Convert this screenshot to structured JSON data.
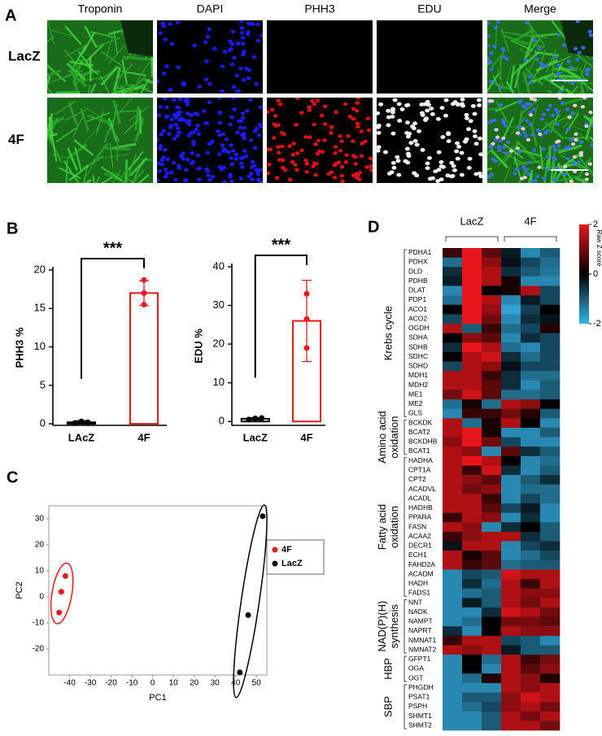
{
  "panel_labels": [
    "A",
    "B",
    "C",
    "D"
  ],
  "panel_a": {
    "columns": [
      "Troponin",
      "DAPI",
      "PHH3",
      "EDU",
      "Merge"
    ],
    "rows": [
      "LacZ",
      "4F"
    ]
  },
  "chart_data": [
    {
      "type": "bar",
      "ylabel": "PHH3 %",
      "categories": [
        "LAcZ",
        "4F"
      ],
      "values": [
        0.2,
        17
      ],
      "errors": [
        0.2,
        1.6
      ],
      "points": [
        [
          0.1,
          0.3,
          0.2
        ],
        [
          18.7,
          17,
          15.5
        ]
      ],
      "colors": [
        "#000000",
        "#e41a1c"
      ],
      "ylim": [
        -0.2,
        20
      ],
      "yticks": [
        0,
        5,
        10,
        15,
        20
      ],
      "annotation": "***"
    },
    {
      "type": "bar",
      "ylabel": "EDU %",
      "categories": [
        "LacZ",
        "4F"
      ],
      "values": [
        0.7,
        26
      ],
      "errors": [
        0.3,
        10.5
      ],
      "points": [
        [
          0.5,
          0.8,
          0.9
        ],
        [
          33,
          26.5,
          19
        ]
      ],
      "colors": [
        "#000000",
        "#e41a1c"
      ],
      "ylim": [
        -1,
        40
      ],
      "yticks": [
        0,
        10,
        20,
        30,
        40
      ],
      "annotation": "***"
    },
    {
      "type": "scatter",
      "xlabel": "PC1",
      "ylabel": "PC2",
      "series": [
        {
          "name": "4F",
          "color": "#e41a1c",
          "x": [
            -42,
            -44,
            -45
          ],
          "values": [
            8,
            2,
            -6
          ]
        },
        {
          "name": "LacZ",
          "color": "#000000",
          "x": [
            53,
            46,
            42
          ],
          "values": [
            31,
            -7,
            -29
          ]
        }
      ],
      "xlim": [
        -50,
        55
      ],
      "xticks": [
        -40,
        -30,
        -20,
        -10,
        0,
        10,
        20,
        30,
        40,
        50
      ],
      "ylim": [
        -30,
        35
      ],
      "yticks": [
        -20,
        -10,
        0,
        10,
        20,
        30
      ]
    },
    {
      "type": "heatmap",
      "column_groups": [
        "LacZ",
        "4F"
      ],
      "colorbar_label": "Raw Z score",
      "clim": [
        -2,
        2
      ],
      "cticks": [
        -2,
        0,
        2
      ],
      "groups": [
        {
          "label": [
            "Krebs cycle"
          ],
          "genes": [
            "PDHA1",
            "PDHX",
            "DLD",
            "PDHB",
            "DLAT",
            "PDP1",
            "ACO1",
            "ACO2",
            "OGDH",
            "SDHA",
            "SDHB",
            "SDHC",
            "SDHD",
            "MDH1",
            "MDH2",
            "ME1",
            "ME2",
            "GLS"
          ],
          "values": [
            [
              0.5,
              2,
              0.8,
              -0.3,
              -1.5,
              -1
            ],
            [
              -1.2,
              2,
              1.2,
              -0.2,
              -0.8,
              -1.2
            ],
            [
              -0.5,
              2,
              1.5,
              -0.5,
              -1,
              -1.3
            ],
            [
              -0.3,
              2,
              1.5,
              0.2,
              -1.5,
              -1.5
            ],
            [
              -1.5,
              2,
              0,
              0.2,
              1.5,
              -0.8
            ],
            [
              -1.2,
              2,
              1.5,
              -1.5,
              -0.3,
              -0.8
            ],
            [
              0,
              2,
              1.3,
              -1.8,
              -0.7,
              0
            ],
            [
              -0.8,
              2,
              1,
              -1.5,
              -0.5,
              -0.2
            ],
            [
              1.5,
              -1,
              0.5,
              -1.2,
              -0.8,
              0.3
            ],
            [
              0,
              1.2,
              0.8,
              -1.5,
              -0.5,
              -0.8
            ],
            [
              -0.5,
              2,
              1.5,
              -1.2,
              -1.5,
              -0.8
            ],
            [
              0,
              1.5,
              1.8,
              -0.5,
              -1.2,
              -0.8
            ],
            [
              -0.8,
              1.5,
              1.2,
              -0.2,
              -0.8,
              -0.8
            ],
            [
              1.5,
              1.5,
              0.5,
              -0.5,
              -1.2,
              -1.2
            ],
            [
              1.5,
              1.5,
              0.8,
              -0.5,
              -1.5,
              -1
            ],
            [
              1,
              1.8,
              0.8,
              -1.2,
              -1.2,
              -1
            ],
            [
              -1.2,
              0.2,
              -1.2,
              1.5,
              1.2,
              0
            ],
            [
              -1.5,
              0.5,
              0.5,
              1,
              0.3,
              -1
            ]
          ]
        },
        {
          "label": [
            "Amino acid",
            "oxidation"
          ],
          "genes": [
            "BCKDK",
            "BCAT2",
            "BCKDHB",
            "BCAT1"
          ],
          "values": [
            [
              1.5,
              -1.2,
              0.2,
              1.5,
              0,
              -1.5
            ],
            [
              1.5,
              2,
              0.2,
              -1.5,
              -1.5,
              -1
            ],
            [
              1.2,
              2,
              1,
              -0.8,
              -1.5,
              -1.5
            ],
            [
              1.5,
              1.2,
              -1.5,
              0.8,
              -0.5,
              -1
            ]
          ]
        },
        {
          "label": [
            "Fatty acid",
            "oxidation"
          ],
          "genes": [
            "HADHA",
            "CPT1A",
            "CPT2",
            "ACADVL",
            "ACADL",
            "HADHB",
            "PPARA",
            "FASN",
            "ACAA2",
            "DECR1",
            "ECH1",
            "FAHD2A",
            "ACADM",
            "HADH",
            "FADS1"
          ],
          "values": [
            [
              1.5,
              2,
              1.5,
              0,
              -1.5,
              -1.2
            ],
            [
              1.5,
              0.5,
              1.8,
              -0.5,
              -1.5,
              -1
            ],
            [
              1.5,
              1.2,
              0.8,
              -1.5,
              -1,
              -0.5
            ],
            [
              1.5,
              1,
              1.2,
              -1.5,
              -1.2,
              -1.2
            ],
            [
              1.5,
              1.5,
              0.5,
              -1.5,
              -0.8,
              -1.2
            ],
            [
              1.5,
              1.5,
              0.8,
              -0.8,
              -0.3,
              -1.5
            ],
            [
              0.5,
              1.5,
              1.2,
              -1.5,
              -0.5,
              -1.5
            ],
            [
              1.5,
              1.2,
              -1.5,
              -0.5,
              0,
              -1
            ],
            [
              0.5,
              1.2,
              1.5,
              1.5,
              -0.5,
              -1
            ],
            [
              -0.2,
              1.5,
              1.5,
              -1.5,
              -0.8,
              -0.5
            ],
            [
              1.5,
              0.2,
              0.8,
              -1.5,
              -1.2,
              -0.8
            ],
            [
              1.5,
              0.5,
              0.8,
              -1.2,
              -1,
              -1
            ],
            [
              -1.5,
              -0.8,
              -1,
              1.8,
              1.5,
              1.5
            ],
            [
              -1.5,
              -0.5,
              -1.2,
              1.5,
              0.5,
              1.5
            ],
            [
              -1.5,
              -1.2,
              -1,
              1.5,
              1.2,
              1.2
            ]
          ]
        },
        {
          "label": [
            "NAD(P)(H)",
            "synthesis"
          ],
          "genes": [
            "NNT",
            "NADK",
            "NAMPT",
            "NAPRT",
            "NMNAT1",
            "NMNAT2"
          ],
          "values": [
            [
              -1.5,
              -0.3,
              -1,
              1.5,
              1,
              1.5
            ],
            [
              -1.5,
              -1.5,
              -0.5,
              1.8,
              1.5,
              1
            ],
            [
              -1.5,
              -1.2,
              0,
              1,
              1,
              0.8
            ],
            [
              -0.5,
              -1.5,
              0,
              1.5,
              1.2,
              1.2
            ],
            [
              0.5,
              1.5,
              1.5,
              -0.8,
              -1,
              -1.5
            ],
            [
              1.5,
              1.2,
              1.5,
              -0.3,
              -1,
              -1
            ]
          ]
        },
        {
          "label": [
            "HBP"
          ],
          "genes": [
            "GFPT1",
            "OGA",
            "OGT"
          ],
          "values": [
            [
              -1.5,
              0,
              -1.2,
              1.5,
              0.5,
              1
            ],
            [
              -1.5,
              0,
              -1.5,
              1.5,
              0.8,
              1.2
            ],
            [
              -1.5,
              -1.2,
              0.3,
              1.5,
              1.2,
              0.3
            ]
          ]
        },
        {
          "label": [
            "SBP"
          ],
          "genes": [
            "PHGDH",
            "PSAT1",
            "PSPH",
            "SHMT1",
            "SHMT2"
          ],
          "values": [
            [
              -1.5,
              -1.5,
              -1.5,
              1.5,
              1.2,
              1.5
            ],
            [
              -1.5,
              -1,
              -1,
              1.2,
              1.8,
              1.5
            ],
            [
              -1.5,
              -1.2,
              -0.8,
              1.2,
              1.5,
              1
            ],
            [
              -1.5,
              -1.5,
              -1,
              1.5,
              1,
              1.5
            ],
            [
              -1.5,
              -1.5,
              -1,
              1.5,
              1.5,
              1
            ]
          ]
        }
      ]
    }
  ]
}
